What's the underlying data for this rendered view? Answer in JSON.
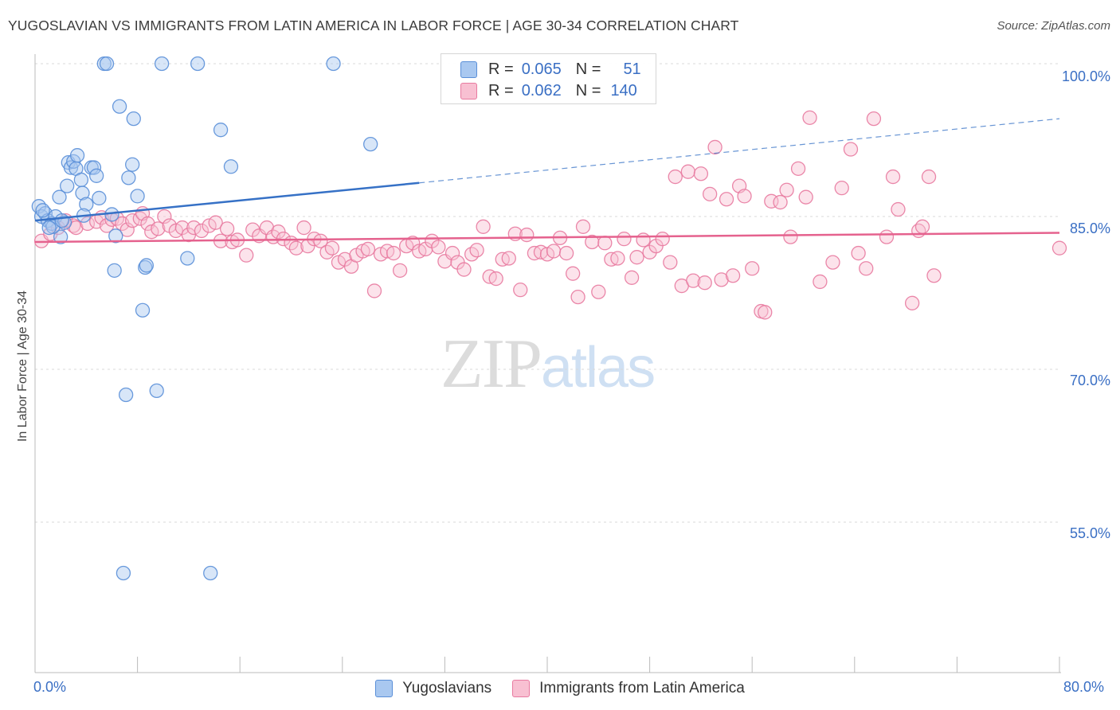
{
  "title": "YUGOSLAVIAN VS IMMIGRANTS FROM LATIN AMERICA IN LABOR FORCE | AGE 30-34 CORRELATION CHART",
  "source": "Source: ZipAtlas.com",
  "watermark": {
    "zip": "ZIP",
    "atlas": "atlas"
  },
  "legend": {
    "r_label": "R =",
    "n_label": "N =",
    "rows": [
      {
        "r": "0.065",
        "n": "51",
        "color": "#a9c8f0",
        "border": "#5a8fd8"
      },
      {
        "r": "0.062",
        "n": "140",
        "color": "#f8c0d2",
        "border": "#e87aa0"
      }
    ]
  },
  "chart_data": {
    "type": "scatter",
    "xlabel": "",
    "ylabel": "In Labor Force | Age 30-34",
    "xlim": [
      0,
      80
    ],
    "ylim": [
      40,
      100
    ],
    "x_tick_labels": [
      "0.0%",
      "80.0%"
    ],
    "y_ticks": [
      {
        "value": 100,
        "label": "100.0%"
      },
      {
        "value": 85,
        "label": "85.0%"
      },
      {
        "value": 70,
        "label": "70.0%"
      },
      {
        "value": 55,
        "label": "55.0%"
      }
    ],
    "grid": "horizontal dashed",
    "series": [
      {
        "name": "Yugoslavians",
        "color": "#5a8fd8",
        "fill": "#a9c8f0",
        "trend": {
          "x0": 0,
          "y0": 84.6,
          "x1": 30,
          "y1": 88.3,
          "dashed_to_x": 80,
          "dashed_to_y": 94.6,
          "line_color": "#3671c6"
        },
        "points": [
          [
            0.3,
            86.0
          ],
          [
            0.5,
            85.0
          ],
          [
            0.8,
            85.3
          ],
          [
            1.0,
            84.6
          ],
          [
            1.3,
            84.3
          ],
          [
            1.6,
            85.0
          ],
          [
            1.9,
            86.9
          ],
          [
            2.0,
            83.0
          ],
          [
            2.3,
            84.4
          ],
          [
            2.5,
            88.0
          ],
          [
            2.6,
            90.3
          ],
          [
            2.8,
            89.8
          ],
          [
            3.0,
            90.4
          ],
          [
            3.2,
            89.7
          ],
          [
            3.3,
            91.0
          ],
          [
            3.6,
            88.6
          ],
          [
            3.7,
            87.3
          ],
          [
            4.0,
            86.2
          ],
          [
            4.4,
            89.8
          ],
          [
            4.6,
            89.8
          ],
          [
            4.8,
            89.0
          ],
          [
            5.0,
            86.8
          ],
          [
            5.4,
            100.0
          ],
          [
            5.6,
            100.0
          ],
          [
            6.0,
            85.2
          ],
          [
            6.2,
            79.7
          ],
          [
            6.3,
            83.1
          ],
          [
            6.6,
            95.8
          ],
          [
            6.9,
            50.0
          ],
          [
            7.1,
            67.5
          ],
          [
            7.3,
            88.8
          ],
          [
            7.6,
            90.1
          ],
          [
            7.7,
            94.6
          ],
          [
            8.0,
            87.0
          ],
          [
            8.4,
            75.8
          ],
          [
            8.6,
            80.0
          ],
          [
            8.7,
            80.2
          ],
          [
            9.5,
            67.9
          ],
          [
            9.9,
            100.0
          ],
          [
            11.9,
            80.9
          ],
          [
            12.7,
            100.0
          ],
          [
            13.7,
            50.0
          ],
          [
            14.5,
            93.5
          ],
          [
            15.3,
            89.9
          ],
          [
            23.3,
            100.0
          ],
          [
            26.2,
            92.1
          ],
          [
            1.4,
            84.0
          ],
          [
            3.8,
            85.1
          ],
          [
            0.6,
            85.6
          ],
          [
            2.1,
            84.6
          ],
          [
            1.1,
            83.9
          ]
        ]
      },
      {
        "name": "Immigrants from Latin America",
        "color": "#e87aa0",
        "fill": "#f8c0d2",
        "trend": {
          "x0": 0,
          "y0": 82.5,
          "x1": 80,
          "y1": 83.4,
          "line_color": "#e5628e"
        },
        "points": [
          [
            0.5,
            82.6
          ],
          [
            1.2,
            83.3
          ],
          [
            1.8,
            83.9
          ],
          [
            2.4,
            84.6
          ],
          [
            3.0,
            84.1
          ],
          [
            3.2,
            83.9
          ],
          [
            4.1,
            84.3
          ],
          [
            4.8,
            84.5
          ],
          [
            5.2,
            84.9
          ],
          [
            5.6,
            84.1
          ],
          [
            6.0,
            84.7
          ],
          [
            6.4,
            84.8
          ],
          [
            6.8,
            84.3
          ],
          [
            7.2,
            83.7
          ],
          [
            7.6,
            84.6
          ],
          [
            8.2,
            84.8
          ],
          [
            8.4,
            85.3
          ],
          [
            8.8,
            84.3
          ],
          [
            9.1,
            83.5
          ],
          [
            9.6,
            83.8
          ],
          [
            10.1,
            85.0
          ],
          [
            10.5,
            84.1
          ],
          [
            11.0,
            83.6
          ],
          [
            11.5,
            83.9
          ],
          [
            12.0,
            83.2
          ],
          [
            12.4,
            83.9
          ],
          [
            13.0,
            83.6
          ],
          [
            13.6,
            84.1
          ],
          [
            14.1,
            84.4
          ],
          [
            14.5,
            82.6
          ],
          [
            15.0,
            83.8
          ],
          [
            15.4,
            82.5
          ],
          [
            15.8,
            82.7
          ],
          [
            16.5,
            81.2
          ],
          [
            17.0,
            83.7
          ],
          [
            17.5,
            83.1
          ],
          [
            18.1,
            83.9
          ],
          [
            18.6,
            83.0
          ],
          [
            19.0,
            83.5
          ],
          [
            19.4,
            82.8
          ],
          [
            20.0,
            82.4
          ],
          [
            20.4,
            81.9
          ],
          [
            21.0,
            83.9
          ],
          [
            21.3,
            82.1
          ],
          [
            21.8,
            82.8
          ],
          [
            22.3,
            82.6
          ],
          [
            22.8,
            81.5
          ],
          [
            23.2,
            81.9
          ],
          [
            23.7,
            80.5
          ],
          [
            24.2,
            80.8
          ],
          [
            24.7,
            80.1
          ],
          [
            25.1,
            81.2
          ],
          [
            25.6,
            81.6
          ],
          [
            26.0,
            81.8
          ],
          [
            26.5,
            77.7
          ],
          [
            27.0,
            81.3
          ],
          [
            27.5,
            81.6
          ],
          [
            28.0,
            81.4
          ],
          [
            28.5,
            79.7
          ],
          [
            29.0,
            82.1
          ],
          [
            29.5,
            82.4
          ],
          [
            30.0,
            81.6
          ],
          [
            30.5,
            81.8
          ],
          [
            31.0,
            82.6
          ],
          [
            31.5,
            82.0
          ],
          [
            32.0,
            80.6
          ],
          [
            32.6,
            81.4
          ],
          [
            33.0,
            80.5
          ],
          [
            33.5,
            79.8
          ],
          [
            34.1,
            81.3
          ],
          [
            34.5,
            81.7
          ],
          [
            35.0,
            84.0
          ],
          [
            35.5,
            79.1
          ],
          [
            36.0,
            78.9
          ],
          [
            36.5,
            80.8
          ],
          [
            37.0,
            80.9
          ],
          [
            37.5,
            83.3
          ],
          [
            37.9,
            77.8
          ],
          [
            38.4,
            83.2
          ],
          [
            39.0,
            81.4
          ],
          [
            39.5,
            81.5
          ],
          [
            40.0,
            81.3
          ],
          [
            40.5,
            81.6
          ],
          [
            41.0,
            82.9
          ],
          [
            41.5,
            81.4
          ],
          [
            42.0,
            79.4
          ],
          [
            42.4,
            77.1
          ],
          [
            42.8,
            84.0
          ],
          [
            43.5,
            82.5
          ],
          [
            44.0,
            77.6
          ],
          [
            44.5,
            82.4
          ],
          [
            45.0,
            80.8
          ],
          [
            45.5,
            80.9
          ],
          [
            46.0,
            82.8
          ],
          [
            46.6,
            79.0
          ],
          [
            47.0,
            81.0
          ],
          [
            47.5,
            82.7
          ],
          [
            48.0,
            81.5
          ],
          [
            48.5,
            82.1
          ],
          [
            49.0,
            82.8
          ],
          [
            49.6,
            80.5
          ],
          [
            50.0,
            88.9
          ],
          [
            50.5,
            78.2
          ],
          [
            51.0,
            89.4
          ],
          [
            51.4,
            78.7
          ],
          [
            52.0,
            89.2
          ],
          [
            52.3,
            78.5
          ],
          [
            52.7,
            87.2
          ],
          [
            53.1,
            91.8
          ],
          [
            53.6,
            78.8
          ],
          [
            54.0,
            86.7
          ],
          [
            54.5,
            79.2
          ],
          [
            55.0,
            88.0
          ],
          [
            55.4,
            87.0
          ],
          [
            56.0,
            79.9
          ],
          [
            56.7,
            75.7
          ],
          [
            57.0,
            75.6
          ],
          [
            57.5,
            86.5
          ],
          [
            58.2,
            86.4
          ],
          [
            58.7,
            87.6
          ],
          [
            59.0,
            83.0
          ],
          [
            59.6,
            89.7
          ],
          [
            60.2,
            86.9
          ],
          [
            60.5,
            94.7
          ],
          [
            61.3,
            78.6
          ],
          [
            62.3,
            80.5
          ],
          [
            63.0,
            87.8
          ],
          [
            63.7,
            91.6
          ],
          [
            64.3,
            81.4
          ],
          [
            64.9,
            79.9
          ],
          [
            65.5,
            94.6
          ],
          [
            66.5,
            83.0
          ],
          [
            67.0,
            88.9
          ],
          [
            67.4,
            85.7
          ],
          [
            68.5,
            76.5
          ],
          [
            69.0,
            83.6
          ],
          [
            69.3,
            84.0
          ],
          [
            69.8,
            88.9
          ],
          [
            70.2,
            79.2
          ],
          [
            80.0,
            81.9
          ]
        ]
      }
    ]
  }
}
